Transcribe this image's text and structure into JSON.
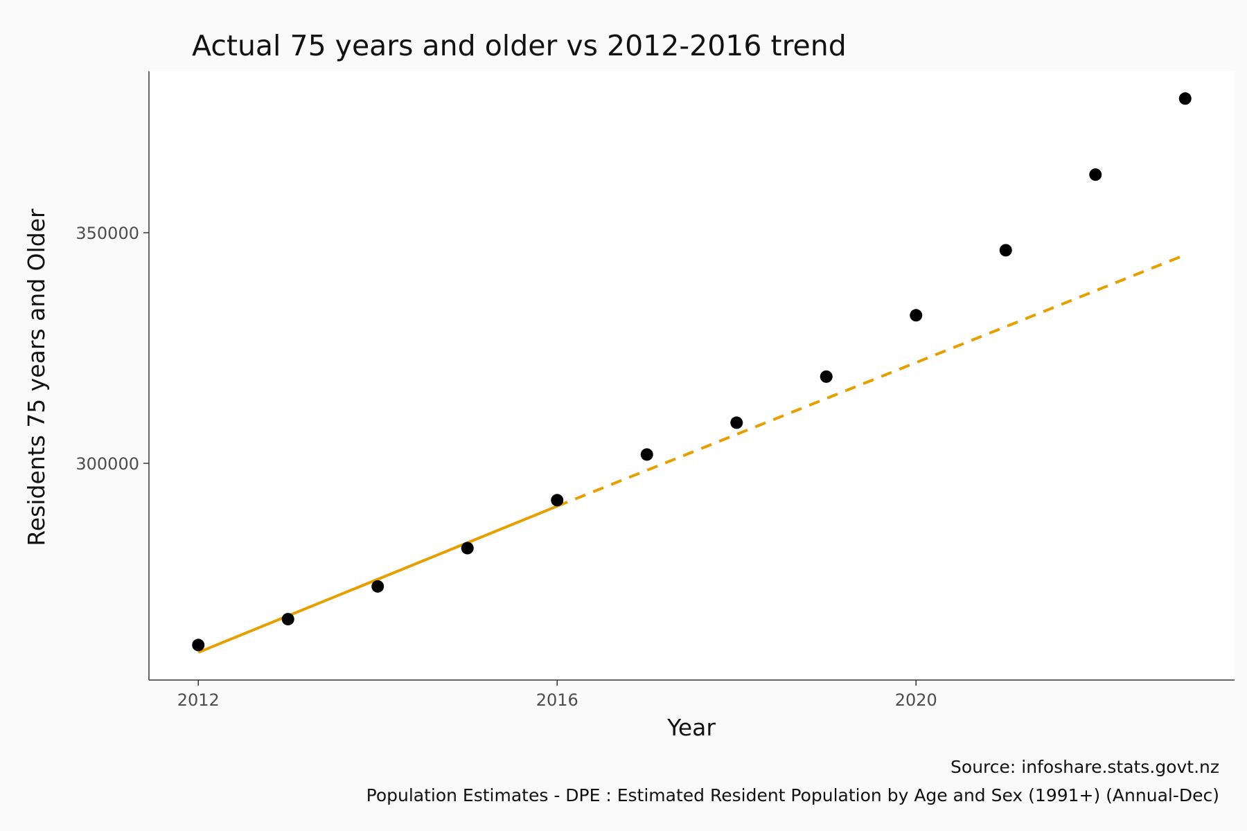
{
  "chart_data": {
    "type": "scatter",
    "title": "Actual 75 years and older vs 2012-2016 trend",
    "xlabel": "Year",
    "ylabel": "Residents 75 years and Older",
    "xlim": [
      2011.45,
      2023.55
    ],
    "ylim": [
      253000,
      385000
    ],
    "x_ticks": [
      2012,
      2016,
      2020
    ],
    "y_ticks": [
      300000,
      350000
    ],
    "x_tick_labels": [
      "2012",
      "2016",
      "2020"
    ],
    "y_tick_labels": [
      "300000",
      "350000"
    ],
    "grid": false,
    "series": [
      {
        "type": "scatter",
        "color": "#000000",
        "points": [
          {
            "x": 2012,
            "y": 260600
          },
          {
            "x": 2013,
            "y": 266200
          },
          {
            "x": 2014,
            "y": 273300
          },
          {
            "x": 2015,
            "y": 281600
          },
          {
            "x": 2016,
            "y": 292000
          },
          {
            "x": 2017,
            "y": 301900
          },
          {
            "x": 2018,
            "y": 308800
          },
          {
            "x": 2019,
            "y": 318800
          },
          {
            "x": 2020,
            "y": 332100
          },
          {
            "x": 2021,
            "y": 346200
          },
          {
            "x": 2022,
            "y": 362600
          },
          {
            "x": 2023,
            "y": 379100
          }
        ]
      },
      {
        "type": "line",
        "style": "solid",
        "color": "#E69F00",
        "points": [
          {
            "x": 2012,
            "y": 259000
          },
          {
            "x": 2016,
            "y": 290700
          }
        ]
      },
      {
        "type": "line",
        "style": "dashed",
        "color": "#E69F00",
        "points": [
          {
            "x": 2016,
            "y": 290700
          },
          {
            "x": 2023,
            "y": 345200
          }
        ]
      }
    ],
    "caption": [
      "Source: infoshare.stats.govt.nz",
      "Population Estimates - DPE : Estimated Resident Population by Age and Sex (1991+) (Annual-Dec)"
    ]
  }
}
